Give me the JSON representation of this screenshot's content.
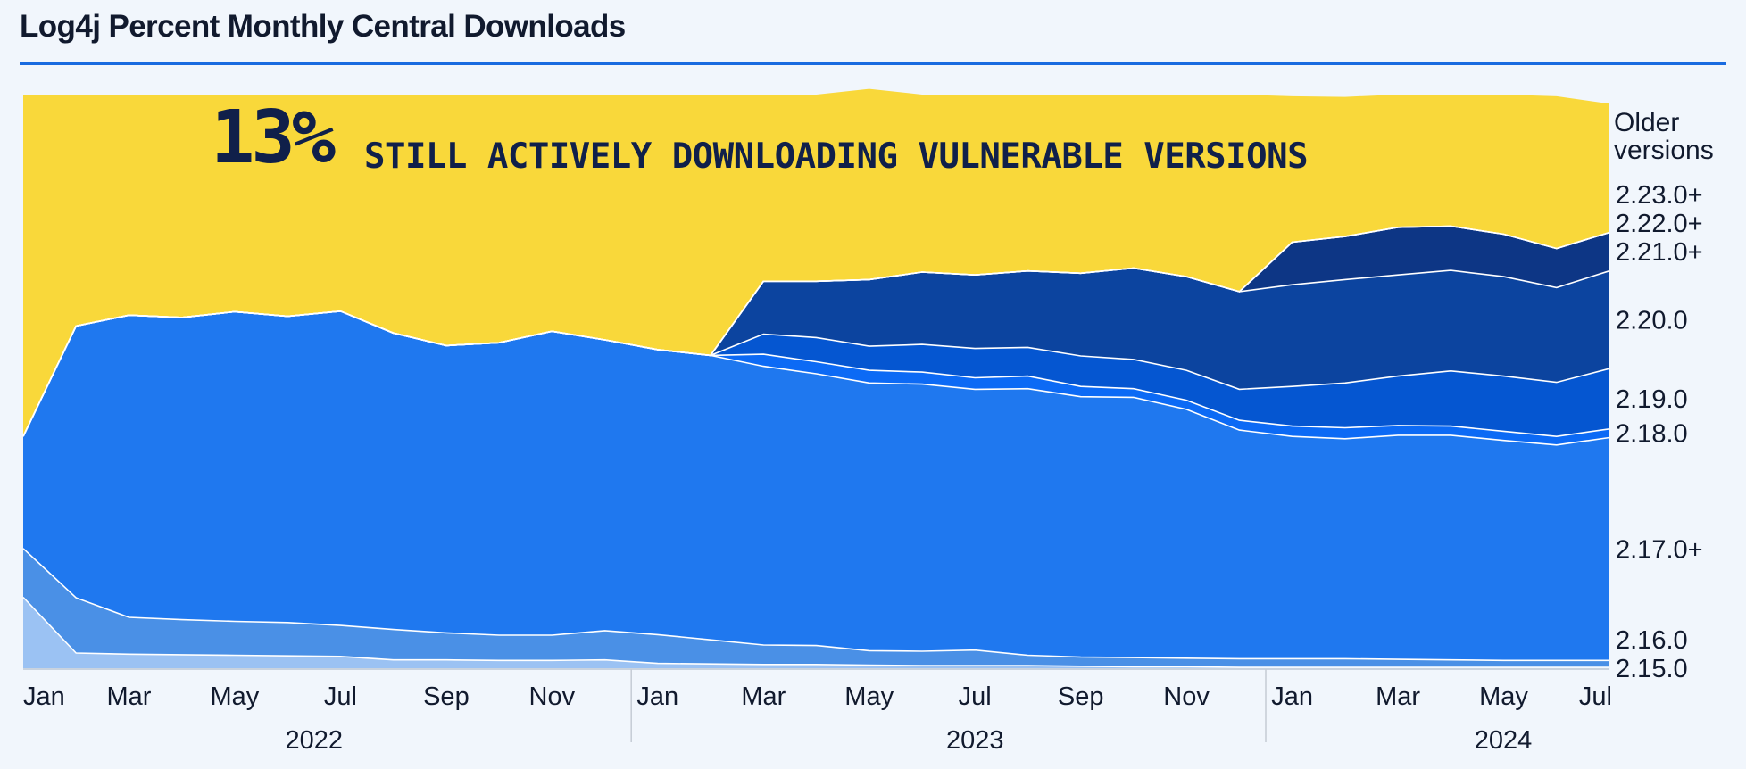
{
  "title": "Log4j Percent Monthly Central Downloads",
  "headline": {
    "percent": "13%",
    "text": "STILL ACTIVELY DOWNLOADING VULNERABLE VERSIONS"
  },
  "chart_data": {
    "type": "area",
    "stacked": true,
    "percent": true,
    "x": [
      "2022-01",
      "2022-02",
      "2022-03",
      "2022-04",
      "2022-05",
      "2022-06",
      "2022-07",
      "2022-08",
      "2022-09",
      "2022-10",
      "2022-11",
      "2022-12",
      "2023-01",
      "2023-02",
      "2023-03",
      "2023-04",
      "2023-05",
      "2023-06",
      "2023-07",
      "2023-08",
      "2023-09",
      "2023-10",
      "2023-11",
      "2023-12",
      "2024-01",
      "2024-02",
      "2024-03",
      "2024-04",
      "2024-05",
      "2024-06",
      "2024-07"
    ],
    "x_tick_labels": [
      "Jan",
      "Mar",
      "May",
      "Jul",
      "Sep",
      "Nov",
      "Jan",
      "Mar",
      "May",
      "Jul",
      "Sep",
      "Nov",
      "Jan",
      "Mar",
      "May",
      "Jul"
    ],
    "x_groups": [
      "2022",
      "2023",
      "2024"
    ],
    "ylim": [
      0,
      100
    ],
    "colors": {
      "background": "#f1f6fc",
      "older": "#f9d83a",
      "title_rule": "#1a6be0",
      "headline": "#10204a"
    },
    "series": [
      {
        "name": "2.15.0",
        "color": "#9bc2f3",
        "values": [
          12.5,
          2.8,
          2.6,
          2.5,
          2.4,
          2.3,
          2.2,
          1.6,
          1.6,
          1.5,
          1.5,
          1.6,
          1.0,
          0.9,
          0.8,
          0.8,
          0.7,
          0.6,
          0.6,
          0.6,
          0.5,
          0.4,
          0.4,
          0.3,
          0.3,
          0.3,
          0.3,
          0.3,
          0.3,
          0.3,
          0.3
        ]
      },
      {
        "name": "2.16.0",
        "color": "#4a90e6",
        "values": [
          8.5,
          9.6,
          6.4,
          6.1,
          5.9,
          5.8,
          5.4,
          5.3,
          4.7,
          4.4,
          4.4,
          5.1,
          5.0,
          4.2,
          3.4,
          3.3,
          2.5,
          2.5,
          2.7,
          1.8,
          1.6,
          1.6,
          1.5,
          1.5,
          1.5,
          1.5,
          1.4,
          1.3,
          1.2,
          1.2,
          1.2
        ]
      },
      {
        "name": "2.17.0+",
        "color": "#1f78ef",
        "values": [
          19.5,
          47.3,
          52.6,
          52.6,
          53.9,
          53.3,
          54.7,
          51.6,
          50.0,
          50.9,
          52.9,
          50.6,
          49.6,
          49.5,
          48.5,
          47.3,
          46.6,
          46.5,
          45.4,
          46.4,
          45.3,
          45.3,
          43.3,
          39.8,
          38.7,
          38.3,
          39.0,
          39.1,
          38.3,
          37.5,
          38.8
        ]
      },
      {
        "name": "2.18.0",
        "color": "#0c6af5",
        "values": [
          0,
          0,
          0,
          0,
          0,
          0,
          0,
          0,
          0,
          0,
          0,
          0,
          0,
          0,
          2.1,
          2.1,
          2.2,
          2.1,
          2.0,
          2.2,
          1.8,
          1.5,
          1.6,
          1.7,
          1.8,
          1.9,
          1.7,
          1.6,
          1.6,
          1.5,
          1.5
        ]
      },
      {
        "name": "2.19.0",
        "color": "#0556d1",
        "values": [
          0,
          0,
          0,
          0,
          0,
          0,
          0,
          0,
          0,
          0,
          0,
          0,
          0,
          0,
          3.5,
          4.2,
          4.2,
          4.8,
          5.1,
          5.0,
          5.3,
          5.1,
          5.2,
          5.4,
          6.9,
          7.8,
          8.6,
          9.6,
          9.6,
          9.4,
          10.5
        ]
      },
      {
        "name": "2.20.0",
        "color": "#0c449f",
        "values": [
          0,
          0,
          0,
          0,
          0,
          0,
          0,
          0,
          0,
          0,
          0,
          0,
          0,
          0,
          9.2,
          9.8,
          11.6,
          12.6,
          12.8,
          13.3,
          14.4,
          15.9,
          16.3,
          17.0,
          17.7,
          18.0,
          17.6,
          17.5,
          17.3,
          16.5,
          17.0
        ]
      },
      {
        "name": "2.21.0+",
        "color": "#0d3685",
        "values": [
          0,
          0,
          0,
          0,
          0,
          0,
          0,
          0,
          0,
          0,
          0,
          0,
          0,
          0,
          0,
          0,
          0,
          0,
          0,
          0,
          0,
          0,
          0,
          0,
          7.4,
          7.5,
          8.3,
          7.7,
          7.4,
          6.8,
          6.7
        ]
      },
      {
        "name": "2.22.0+",
        "color": "#0e2a6a",
        "values": [
          0,
          0,
          0,
          0,
          0,
          0,
          0,
          0,
          0,
          0,
          0,
          0,
          0,
          0,
          0,
          0,
          0,
          0,
          0,
          0,
          0,
          0,
          0,
          0,
          0,
          0,
          0,
          0,
          0,
          0,
          0
        ]
      },
      {
        "name": "2.23.0+",
        "color": "#0f1d4a",
        "values": [
          0,
          0,
          0,
          0,
          0,
          0,
          0,
          0,
          0,
          0,
          0,
          0,
          0,
          0,
          0,
          0,
          0,
          0,
          0,
          0,
          0,
          0,
          0,
          0,
          0,
          0,
          0,
          0,
          0,
          0,
          0
        ]
      },
      {
        "name": "Older versions",
        "color": "#f9d83a",
        "values": [
          59.5,
          40.3,
          38.4,
          38.8,
          37.8,
          38.6,
          37.7,
          41.5,
          43.7,
          43.2,
          41.2,
          42.7,
          44.4,
          45.4,
          32.5,
          32.5,
          33.2,
          30.9,
          31.4,
          30.7,
          31.1,
          30.2,
          31.7,
          34.3,
          25.4,
          24.3,
          23.1,
          22.9,
          24.3,
          26.5,
          22.4
        ]
      }
    ]
  }
}
